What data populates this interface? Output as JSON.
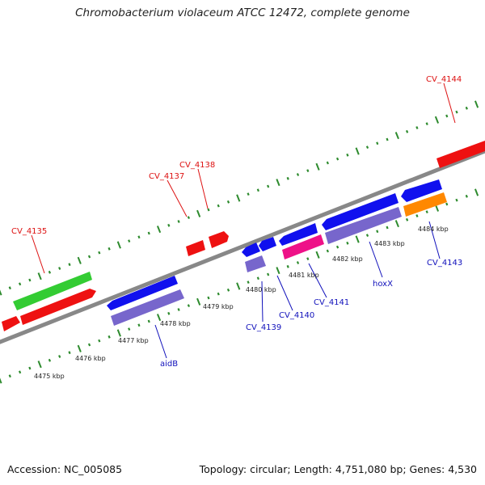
{
  "header": {
    "title": "Chromobacterium violaceum ATCC 12472, complete genome"
  },
  "footer": {
    "accession": "Accession: NC_005085",
    "summary": "Topology: circular; Length: 4,751,080 bp; Genes: 4,530"
  },
  "colors": {
    "backbone": "#888888",
    "tick": "#2e8b2e",
    "forward_label": "#dd1111",
    "reverse_label": "#1010bb",
    "red_gene": "#ee1111",
    "green_gene": "#33cc33",
    "blue_gene": "#1010ee",
    "lavender_gene": "#7766cc",
    "magenta_gene": "#ee1188",
    "orange_gene": "#ff8800"
  },
  "kbp_labels": [
    "4475 kbp",
    "4476 kbp",
    "4477 kbp",
    "4478 kbp",
    "4479 kbp",
    "4480 kbp",
    "4481 kbp",
    "4482 kbp",
    "4483 kbp",
    "4484 kbp"
  ],
  "forward_gene_labels": [
    "CV_4135",
    "CV_4137",
    "CV_4138",
    "CV_4144"
  ],
  "reverse_gene_labels": [
    "aidB",
    "CV_4139",
    "CV_4140",
    "CV_4141",
    "hoxX",
    "CV_4143"
  ]
}
